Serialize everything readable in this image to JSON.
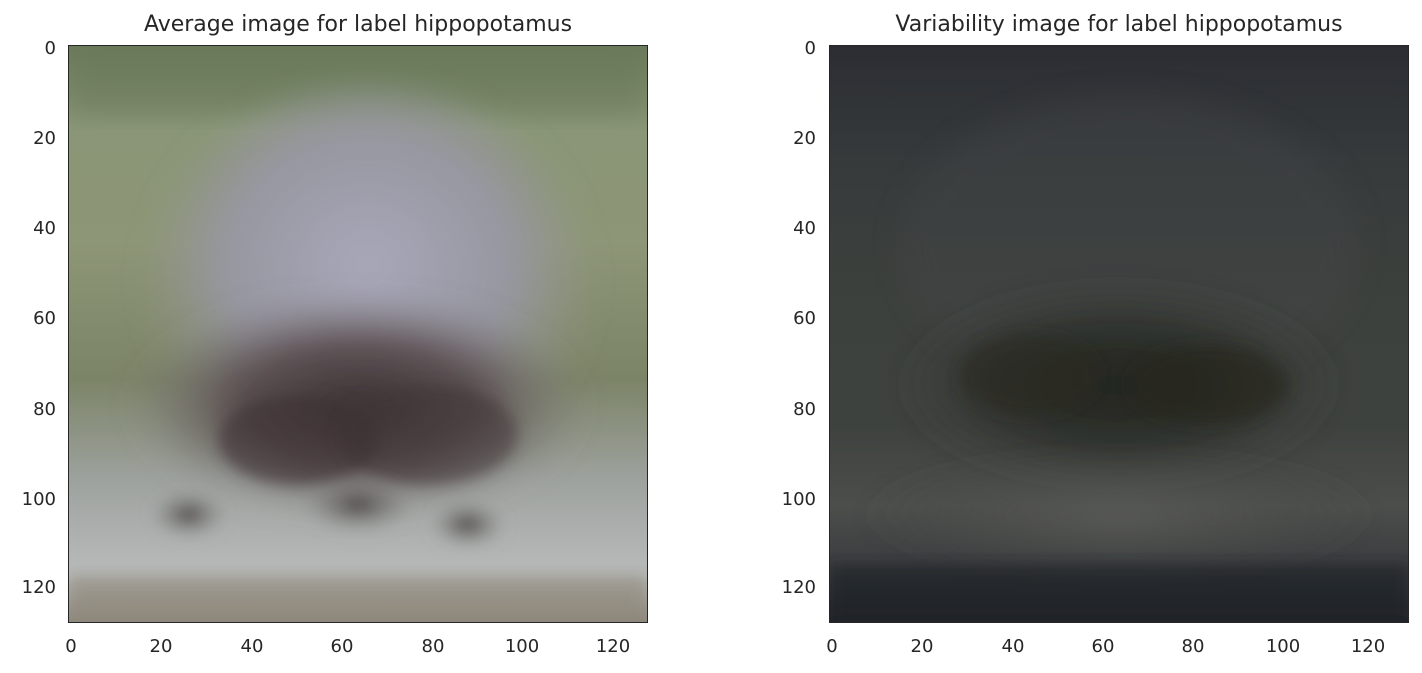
{
  "chart_data": [
    {
      "type": "heatmap",
      "title": "Average image for label hippopotamus",
      "xlabel": "",
      "ylabel": "",
      "xlim": [
        0,
        127
      ],
      "ylim": [
        127,
        0
      ],
      "xticks": [
        "0",
        "20",
        "40",
        "60",
        "80",
        "100",
        "120"
      ],
      "yticks": [
        "0",
        "20",
        "40",
        "60",
        "80",
        "100",
        "120"
      ],
      "grid": false,
      "colors": {
        "top": "#6e7d5c",
        "upper_mid": "#8f9a78",
        "mid_field": "#7f8868",
        "subject_light": "#a7a7b6",
        "subject_dark": "#3f3636",
        "bottom": "#b3b6b5",
        "bottom_edge": "#8c8577"
      }
    },
    {
      "type": "heatmap",
      "title": "Variability image for label hippopotamus",
      "xlabel": "",
      "ylabel": "",
      "xlim": [
        0,
        127
      ],
      "ylim": [
        127,
        0
      ],
      "xticks": [
        "0",
        "20",
        "40",
        "60",
        "80",
        "100",
        "120"
      ],
      "yticks": [
        "0",
        "20",
        "40",
        "60",
        "80",
        "100",
        "120"
      ],
      "grid": false,
      "colors": {
        "top": "#2c2e33",
        "upper_mid": "#3b3f3e",
        "mid_field": "#404442",
        "subject_light": "#4a4a4f",
        "subject_dark": "#24251f",
        "bottom": "#515350",
        "bottom_edge": "#25272b"
      }
    }
  ]
}
